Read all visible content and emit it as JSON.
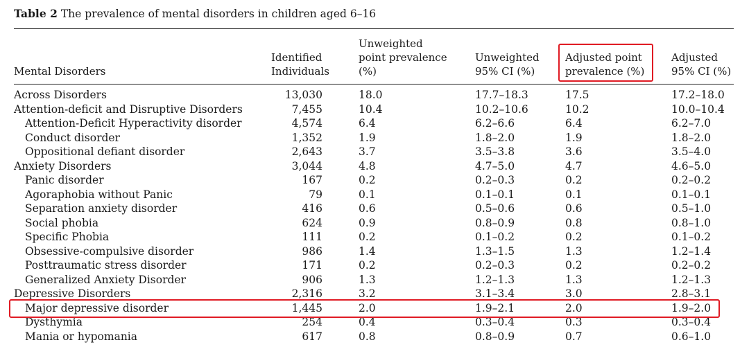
{
  "caption": {
    "label": "Table 2",
    "text": "The prevalence of mental disorders in children aged 6–16"
  },
  "headers": {
    "disorder": [
      "Mental Disorders"
    ],
    "identified": [
      "Identified",
      "Individuals"
    ],
    "unweighted_point": [
      "Unweighted",
      "point prevalence",
      "(%)"
    ],
    "unweighted_ci": [
      "Unweighted",
      "95% CI (%)"
    ],
    "adjusted_point": [
      "Adjusted point",
      "prevalence (%)"
    ],
    "adjusted_ci": [
      "Adjusted",
      "95% CI (%)"
    ]
  },
  "rows": [
    {
      "name": "Across Disorders",
      "indent": false,
      "n": "13,030",
      "up": "18.0",
      "uci": "17.7–18.3",
      "ap": "17.5",
      "aci": "17.2–18.0"
    },
    {
      "name": "Attention-deficit and Disruptive Disorders",
      "indent": false,
      "n": "7,455",
      "up": "10.4",
      "uci": "10.2–10.6",
      "ap": "10.2",
      "aci": "10.0–10.4"
    },
    {
      "name": "Attention-Deficit Hyperactivity disorder",
      "indent": true,
      "n": "4,574",
      "up": "6.4",
      "uci": "6.2–6.6",
      "ap": "6.4",
      "aci": "6.2–7.0"
    },
    {
      "name": "Conduct disorder",
      "indent": true,
      "n": "1,352",
      "up": "1.9",
      "uci": "1.8–2.0",
      "ap": "1.9",
      "aci": "1.8–2.0"
    },
    {
      "name": "Oppositional defiant disorder",
      "indent": true,
      "n": "2,643",
      "up": "3.7",
      "uci": "3.5–3.8",
      "ap": "3.6",
      "aci": "3.5–4.0"
    },
    {
      "name": "Anxiety Disorders",
      "indent": false,
      "n": "3,044",
      "up": "4.8",
      "uci": "4.7–5.0",
      "ap": "4.7",
      "aci": "4.6–5.0"
    },
    {
      "name": "Panic disorder",
      "indent": true,
      "n": "167",
      "up": "0.2",
      "uci": "0.2–0.3",
      "ap": "0.2",
      "aci": "0.2–0.2"
    },
    {
      "name": "Agoraphobia without Panic",
      "indent": true,
      "n": "79",
      "up": "0.1",
      "uci": "0.1–0.1",
      "ap": "0.1",
      "aci": "0.1–0.1"
    },
    {
      "name": "Separation anxiety disorder",
      "indent": true,
      "n": "416",
      "up": "0.6",
      "uci": "0.5–0.6",
      "ap": "0.6",
      "aci": "0.5–1.0"
    },
    {
      "name": "Social phobia",
      "indent": true,
      "n": "624",
      "up": "0.9",
      "uci": "0.8–0.9",
      "ap": "0.8",
      "aci": "0.8–1.0"
    },
    {
      "name": "Specific Phobia",
      "indent": true,
      "n": "111",
      "up": "0.2",
      "uci": "0.1–0.2",
      "ap": "0.2",
      "aci": "0.1–0.2"
    },
    {
      "name": "Obsessive-compulsive disorder",
      "indent": true,
      "n": "986",
      "up": "1.4",
      "uci": "1.3–1.5",
      "ap": "1.3",
      "aci": "1.2–1.4"
    },
    {
      "name": "Posttraumatic stress disorder",
      "indent": true,
      "n": "171",
      "up": "0.2",
      "uci": "0.2–0.3",
      "ap": "0.2",
      "aci": "0.2–0.2"
    },
    {
      "name": "Generalized Anxiety Disorder",
      "indent": true,
      "n": "906",
      "up": "1.3",
      "uci": "1.2–1.3",
      "ap": "1.3",
      "aci": "1.2–1.3"
    },
    {
      "name": "Depressive Disorders",
      "indent": false,
      "n": "2,316",
      "up": "3.2",
      "uci": "3.1–3.4",
      "ap": "3.0",
      "aci": "2.8–3.1"
    },
    {
      "name": "Major depressive disorder",
      "indent": true,
      "n": "1,445",
      "up": "2.0",
      "uci": "1.9–2.1",
      "ap": "2.0",
      "aci": "1.9–2.0"
    },
    {
      "name": "Dysthymia",
      "indent": true,
      "n": "254",
      "up": "0.4",
      "uci": "0.3–0.4",
      "ap": "0.3",
      "aci": "0.3–0.4"
    },
    {
      "name": "Mania or hypomania",
      "indent": true,
      "n": "617",
      "up": "0.8",
      "uci": "0.8–0.9",
      "ap": "0.7",
      "aci": "0.6–1.0"
    }
  ],
  "highlight": {
    "color": "#e01b24",
    "header_column": "adjusted_point",
    "row": "Major depressive disorder"
  }
}
